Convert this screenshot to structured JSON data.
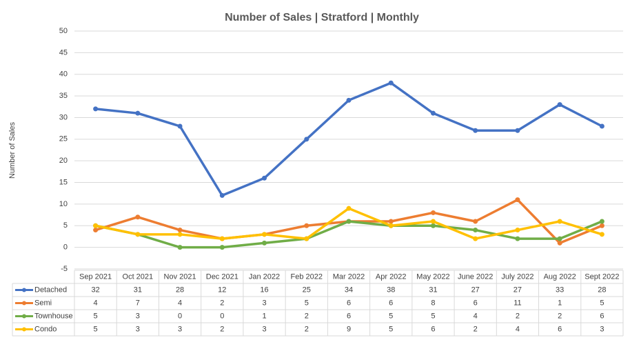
{
  "chart_data": {
    "type": "line",
    "title": "Number of Sales | Stratford | Monthly",
    "y_label": "Number of Sales",
    "categories": [
      "Sep 2021",
      "Oct 2021",
      "Nov 2021",
      "Dec 2021",
      "Jan 2022",
      "Feb 2022",
      "Mar 2022",
      "Apr 2022",
      "May 2022",
      "June 2022",
      "July 2022",
      "Aug 2022",
      "Sept 2022"
    ],
    "series": [
      {
        "name": "Detached",
        "color": "#4472c4",
        "values": [
          32,
          31,
          28,
          12,
          16,
          25,
          34,
          38,
          31,
          27,
          27,
          33,
          28
        ]
      },
      {
        "name": "Semi",
        "color": "#ed7d31",
        "values": [
          4,
          7,
          4,
          2,
          3,
          5,
          6,
          6,
          8,
          6,
          11,
          1,
          5
        ]
      },
      {
        "name": "Townhouse",
        "color": "#70ad47",
        "values": [
          5,
          3,
          0,
          0,
          1,
          2,
          6,
          5,
          5,
          4,
          2,
          2,
          6
        ]
      },
      {
        "name": "Condo",
        "color": "#ffc000",
        "values": [
          5,
          3,
          3,
          2,
          3,
          2,
          9,
          5,
          6,
          2,
          4,
          6,
          3
        ]
      }
    ],
    "ylim": [
      -5,
      50
    ],
    "yticks": [
      -5,
      0,
      5,
      10,
      15,
      20,
      25,
      30,
      35,
      40,
      45,
      50
    ],
    "grid": true
  }
}
